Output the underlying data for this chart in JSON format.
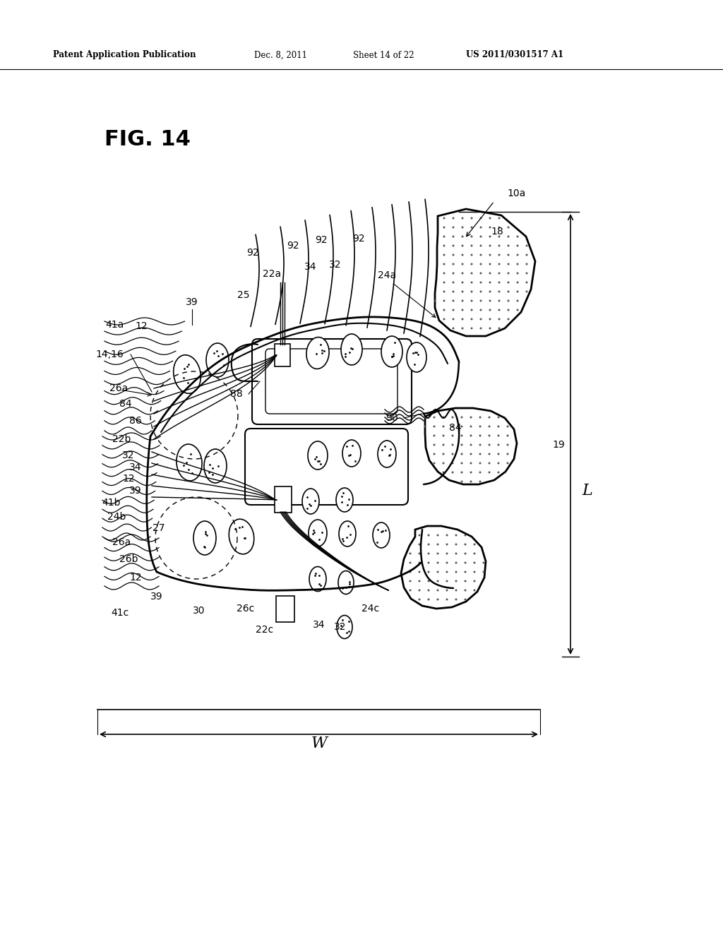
{
  "bg_color": "#ffffff",
  "header_text": "Patent Application Publication",
  "header_date": "Dec. 8, 2011",
  "header_sheet": "Sheet 14 of 22",
  "header_patent": "US 2011/0301517 A1",
  "fig_label": "FIG. 14"
}
